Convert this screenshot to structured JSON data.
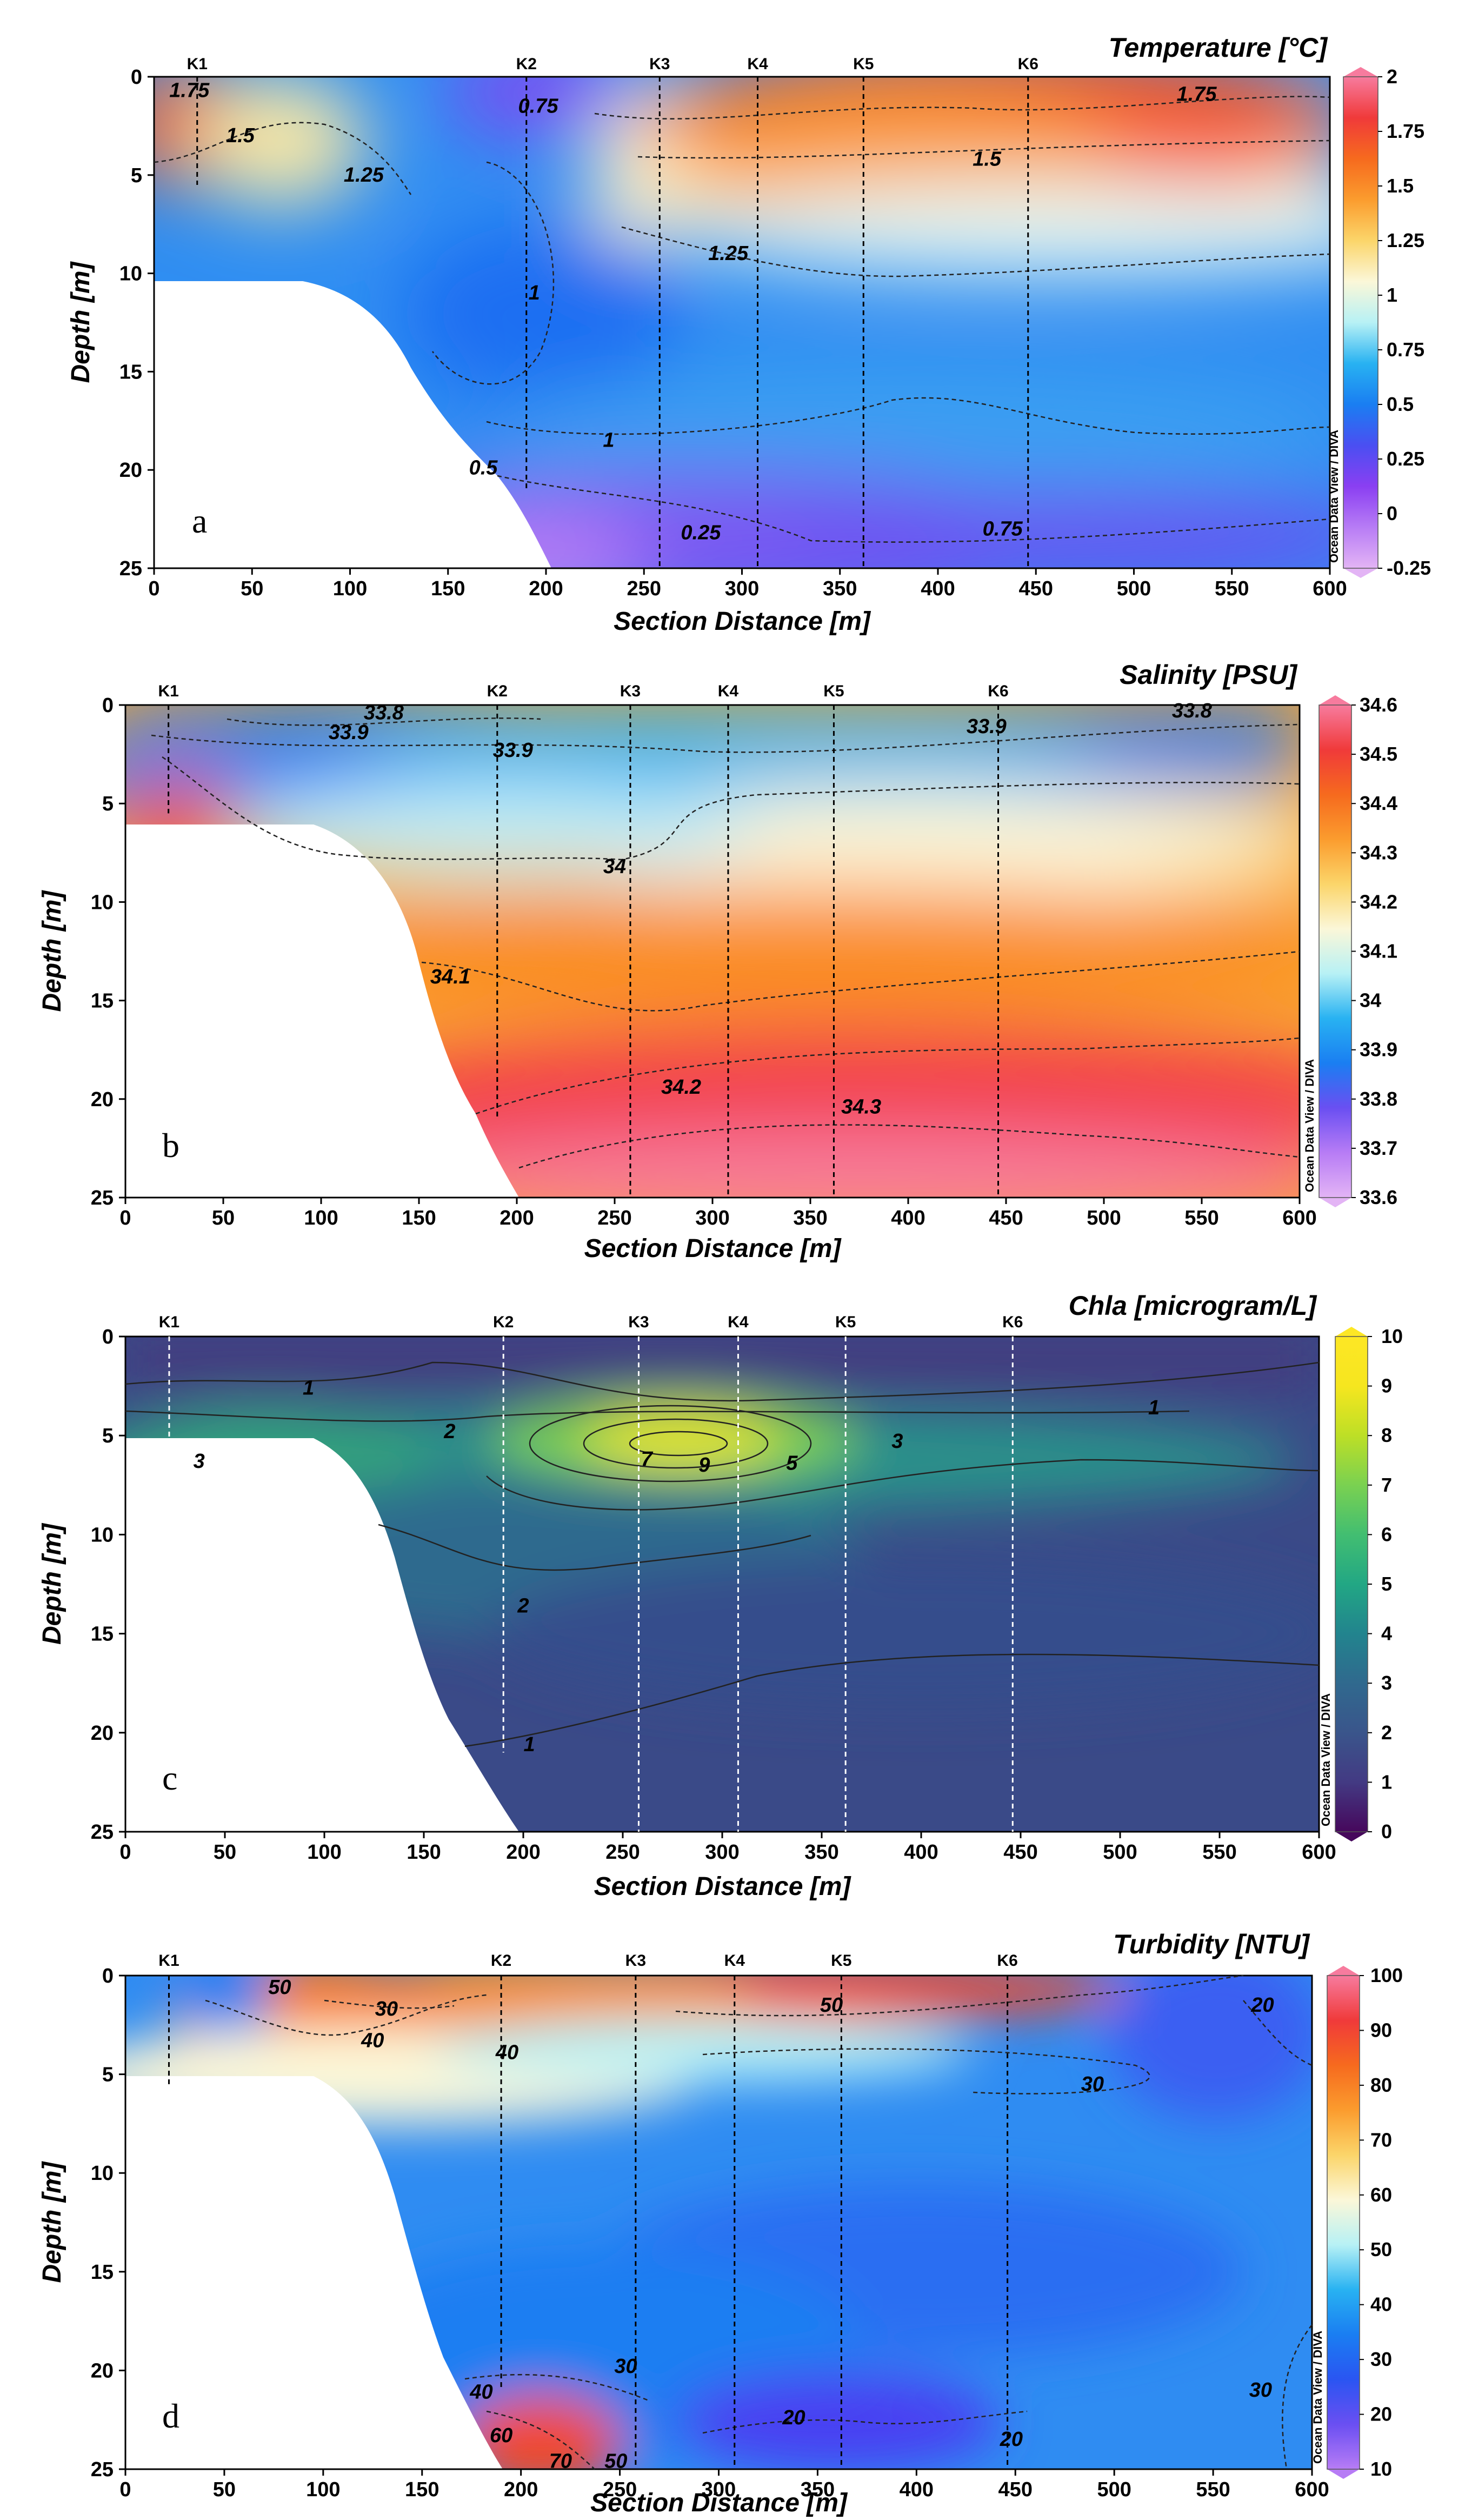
{
  "credit": "Ocean Data View / DIVA",
  "chart_data": [
    {
      "type": "heatmap",
      "panel_label": "a",
      "title": "Temperature [°C]",
      "xlabel": "Section Distance [m]",
      "ylabel": "Depth [m]",
      "xlim": [
        0,
        600
      ],
      "ylim": [
        25,
        0
      ],
      "x_ticks": [
        0,
        50,
        100,
        150,
        200,
        250,
        300,
        350,
        400,
        450,
        500,
        550,
        600
      ],
      "y_ticks": [
        0,
        5,
        10,
        15,
        20,
        25
      ],
      "stations": [
        {
          "name": "K1",
          "x": 22
        },
        {
          "name": "K2",
          "x": 190
        },
        {
          "name": "K3",
          "x": 258
        },
        {
          "name": "K4",
          "x": 308
        },
        {
          "name": "K5",
          "x": 362
        },
        {
          "name": "K6",
          "x": 446
        }
      ],
      "colorbar": {
        "min": -0.25,
        "max": 2,
        "ticks": [
          "2",
          "1.75",
          "1.5",
          "1.25",
          "1",
          "0.75",
          "0.5",
          "0.25",
          "0",
          "-0.25"
        ]
      },
      "colormap": [
        "#e3b4f5",
        "#b77cf5",
        "#8a3ff2",
        "#4a4ff2",
        "#1a7ef2",
        "#28b2f2",
        "#b7f1f5",
        "#fbf7d8",
        "#fbd56a",
        "#fb9c2e",
        "#f66a1e",
        "#f03a3a",
        "#f77b9e"
      ],
      "contour_labels": [
        {
          "text": "1.75",
          "x": 18,
          "y": 0.7
        },
        {
          "text": "1.5",
          "x": 44,
          "y": 3
        },
        {
          "text": "1.25",
          "x": 107,
          "y": 5
        },
        {
          "text": "0.75",
          "x": 196,
          "y": 1.5
        },
        {
          "text": "1",
          "x": 194,
          "y": 11
        },
        {
          "text": "1.25",
          "x": 293,
          "y": 9
        },
        {
          "text": "1.5",
          "x": 425,
          "y": 4.2
        },
        {
          "text": "1.75",
          "x": 532,
          "y": 0.9
        },
        {
          "text": "1",
          "x": 232,
          "y": 18.5
        },
        {
          "text": "0.5",
          "x": 168,
          "y": 19.9
        },
        {
          "text": "0.25",
          "x": 279,
          "y": 23.2
        },
        {
          "text": "0.75",
          "x": 433,
          "y": 23
        }
      ]
    },
    {
      "type": "heatmap",
      "panel_label": "b",
      "title": "Salinity [PSU]",
      "xlabel": "Section Distance [m]",
      "ylabel": "Depth [m]",
      "xlim": [
        0,
        600
      ],
      "ylim": [
        25,
        0
      ],
      "x_ticks": [
        0,
        50,
        100,
        150,
        200,
        250,
        300,
        350,
        400,
        450,
        500,
        550,
        600
      ],
      "y_ticks": [
        0,
        5,
        10,
        15,
        20,
        25
      ],
      "stations": [
        {
          "name": "K1",
          "x": 22
        },
        {
          "name": "K2",
          "x": 190
        },
        {
          "name": "K3",
          "x": 258
        },
        {
          "name": "K4",
          "x": 308
        },
        {
          "name": "K5",
          "x": 362
        },
        {
          "name": "K6",
          "x": 446
        }
      ],
      "colorbar": {
        "min": 33.6,
        "max": 34.6,
        "ticks": [
          "34.6",
          "34.5",
          "34.4",
          "34.3",
          "34.2",
          "34.1",
          "34",
          "33.9",
          "33.8",
          "33.7",
          "33.6"
        ]
      },
      "colormap": [
        "#e3b4f5",
        "#b77cf5",
        "#6a4ff2",
        "#1a7ef2",
        "#28b2f2",
        "#b7f1f5",
        "#fbf7d8",
        "#fbd56a",
        "#fb9c2e",
        "#f66a1e",
        "#f03a3a",
        "#f77b9e"
      ],
      "contour_labels": [
        {
          "text": "33.8",
          "x": 132,
          "y": 0.4
        },
        {
          "text": "33.9",
          "x": 114,
          "y": 1.4
        },
        {
          "text": "33.9",
          "x": 198,
          "y": 2.3
        },
        {
          "text": "33.9",
          "x": 440,
          "y": 1.1
        },
        {
          "text": "33.8",
          "x": 545,
          "y": 0.3
        },
        {
          "text": "34",
          "x": 250,
          "y": 8.2
        },
        {
          "text": "34.1",
          "x": 166,
          "y": 13.8
        },
        {
          "text": "34.2",
          "x": 284,
          "y": 19.4
        },
        {
          "text": "34.3",
          "x": 376,
          "y": 20.4
        }
      ]
    },
    {
      "type": "heatmap",
      "panel_label": "c",
      "title": "Chla [microgram/L]",
      "xlabel": "Section Distance [m]",
      "ylabel": "Depth [m]",
      "xlim": [
        0,
        600
      ],
      "ylim": [
        25,
        0
      ],
      "x_ticks": [
        0,
        50,
        100,
        150,
        200,
        250,
        300,
        350,
        400,
        450,
        500,
        550,
        600
      ],
      "y_ticks": [
        0,
        5,
        10,
        15,
        20,
        25
      ],
      "stations": [
        {
          "name": "K1",
          "x": 22
        },
        {
          "name": "K2",
          "x": 190
        },
        {
          "name": "K3",
          "x": 258
        },
        {
          "name": "K4",
          "x": 308
        },
        {
          "name": "K5",
          "x": 362
        },
        {
          "name": "K6",
          "x": 446
        }
      ],
      "colorbar": {
        "min": 0,
        "max": 10,
        "ticks": [
          "10",
          "9",
          "8",
          "7",
          "6",
          "5",
          "4",
          "3",
          "2",
          "1",
          "0"
        ]
      },
      "colormap": [
        "#46085c",
        "#433a83",
        "#3a558b",
        "#30698e",
        "#22848e",
        "#22a784",
        "#42be71",
        "#7ad151",
        "#bddf26",
        "#f6e61f",
        "#fde725"
      ],
      "contour_labels": [
        {
          "text": "1",
          "x": 92,
          "y": 2.6
        },
        {
          "text": "2",
          "x": 163,
          "y": 4.8
        },
        {
          "text": "3",
          "x": 37,
          "y": 6.3
        },
        {
          "text": "7",
          "x": 262,
          "y": 6.2
        },
        {
          "text": "9",
          "x": 291,
          "y": 6.5
        },
        {
          "text": "5",
          "x": 335,
          "y": 6.4
        },
        {
          "text": "3",
          "x": 388,
          "y": 5.3
        },
        {
          "text": "1",
          "x": 517,
          "y": 3.6
        },
        {
          "text": "2",
          "x": 200,
          "y": 13.6
        },
        {
          "text": "1",
          "x": 203,
          "y": 20.6
        }
      ]
    },
    {
      "type": "heatmap",
      "panel_label": "d",
      "title": "Turbidity [NTU]",
      "xlabel": "Section Distance [m]",
      "ylabel": "Depth [m]",
      "xlim": [
        0,
        600
      ],
      "ylim": [
        25,
        0
      ],
      "x_ticks": [
        0,
        50,
        100,
        150,
        200,
        250,
        300,
        350,
        400,
        450,
        500,
        550,
        600
      ],
      "y_ticks": [
        0,
        5,
        10,
        15,
        20,
        25
      ],
      "stations": [
        {
          "name": "K1",
          "x": 22
        },
        {
          "name": "K2",
          "x": 190
        },
        {
          "name": "K3",
          "x": 258
        },
        {
          "name": "K4",
          "x": 308
        },
        {
          "name": "K5",
          "x": 362
        },
        {
          "name": "K6",
          "x": 446
        }
      ],
      "colorbar": {
        "min": 10,
        "max": 100,
        "ticks": [
          "100",
          "90",
          "80",
          "70",
          "60",
          "50",
          "40",
          "30",
          "20",
          "10"
        ]
      },
      "colormap": [
        "#b77cf5",
        "#6a4ff2",
        "#2a55f2",
        "#1a7ef2",
        "#28b2f2",
        "#b7f1f5",
        "#fbf7d8",
        "#fbd56a",
        "#fb9c2e",
        "#f66a1e",
        "#f03a3a",
        "#f77b9e"
      ],
      "contour_labels": [
        {
          "text": "50",
          "x": 78,
          "y": 0.6
        },
        {
          "text": "30",
          "x": 132,
          "y": 1.7
        },
        {
          "text": "40",
          "x": 125,
          "y": 3.3
        },
        {
          "text": "40",
          "x": 193,
          "y": 3.9
        },
        {
          "text": "50",
          "x": 357,
          "y": 1.5
        },
        {
          "text": "30",
          "x": 489,
          "y": 5.5
        },
        {
          "text": "20",
          "x": 575,
          "y": 1.5
        },
        {
          "text": "30",
          "x": 253,
          "y": 19.8
        },
        {
          "text": "40",
          "x": 180,
          "y": 21.1
        },
        {
          "text": "60",
          "x": 190,
          "y": 23.3
        },
        {
          "text": "70",
          "x": 220,
          "y": 24.6
        },
        {
          "text": "50",
          "x": 248,
          "y": 24.6
        },
        {
          "text": "20",
          "x": 338,
          "y": 22.4
        },
        {
          "text": "20",
          "x": 448,
          "y": 23.5
        },
        {
          "text": "30",
          "x": 574,
          "y": 21
        }
      ]
    }
  ]
}
